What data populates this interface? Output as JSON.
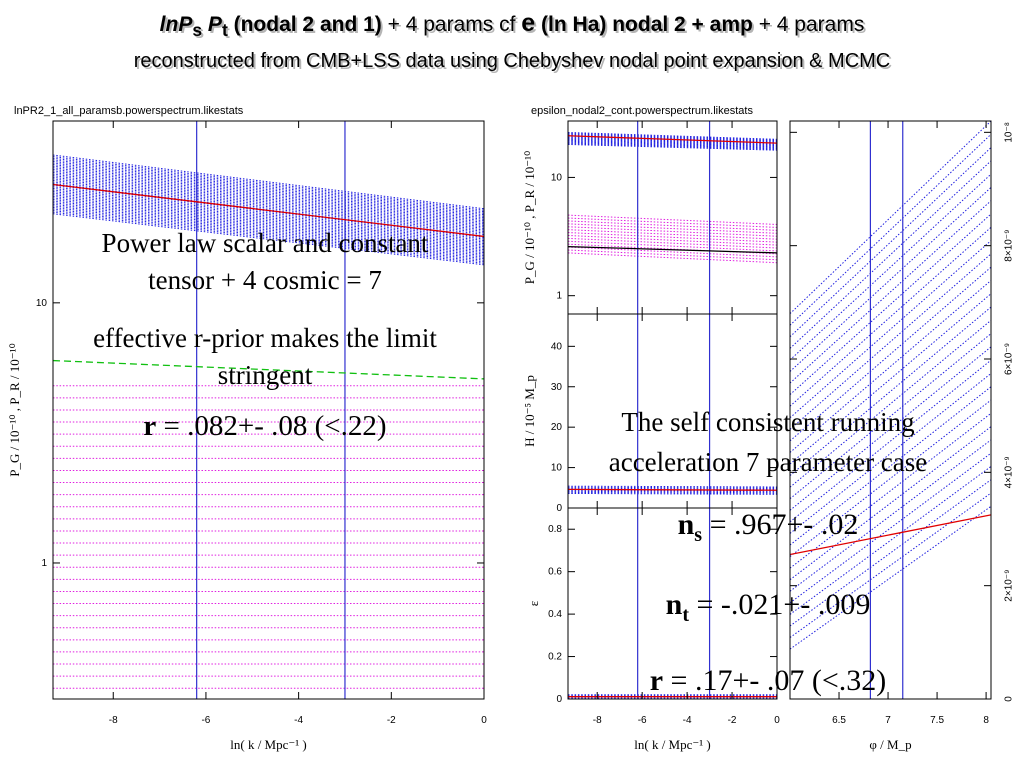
{
  "header": {
    "t_lnp": "lnP",
    "t_s": "s",
    "t_p": "P",
    "t_t": "t",
    "t_nodal": "(nodal 2 and 1)",
    "t_plus4a": "+ 4 params cf",
    "t_eps": "e",
    "t_lnha": "(ln Ha) nodal 2 + amp",
    "t_plus4b": "+ 4 params",
    "line2": "reconstructed from CMB+LSS data using Chebyshev nodal point expansion & MCMC"
  },
  "figures": {
    "left_file": "lnPR2_1_all_paramsb.powerspectrum.likestats",
    "right_file": "epsilon_nodal2_cont.powerspectrum.likestats"
  },
  "annotations": {
    "left_l1": "Power law scalar and constant",
    "left_l2": "tensor + 4 cosmic = 7",
    "left_l3": "effective r-prior makes the limit",
    "left_l4": "stringent",
    "left_r_sym": "r",
    "left_r_val": " = .082+- .08 (<.22)",
    "right_l1": "The self consistent running",
    "right_l2": "acceleration 7 parameter case",
    "ns_sym": "n",
    "ns_sub": "s",
    "ns_val": " = .967+- .02",
    "nt_sym": "n",
    "nt_sub": "t",
    "nt_val": " = -.021+- .009",
    "r_sym": "r",
    "r_val": " = .17+- .07 (<.32)"
  },
  "colors": {
    "blue": "#2020e0",
    "magenta": "#e020e0",
    "red": "#e00000",
    "green": "#10c010",
    "axis": "#000000",
    "vline": "#3030d0"
  },
  "chart_data": [
    {
      "id": "left",
      "type": "line",
      "yscale": "log",
      "xlim": [
        -9.3,
        0
      ],
      "ylim": [
        0.3,
        50
      ],
      "xticks": [
        -8,
        -6,
        -4,
        -2,
        0
      ],
      "yticks": [
        1,
        10
      ],
      "ytick_labels": [
        "1",
        "10"
      ],
      "xlabel": "ln( k / Mpc⁻¹ )",
      "ylabel": "P_G / 10⁻¹⁰ , P_R / 10⁻¹⁰",
      "vlines": [
        -6.2,
        -3.0
      ],
      "bands": [
        {
          "color": "blue",
          "style": "dotted",
          "n": 38,
          "y_left": [
            22,
            37
          ],
          "y_right": [
            14,
            23
          ]
        },
        {
          "color": "magenta",
          "style": "dotted",
          "n": 26,
          "y_left": [
            0.33,
            4.8
          ],
          "y_right": [
            0.33,
            4.8
          ]
        }
      ],
      "lines": [
        {
          "color": "red",
          "style": "solid",
          "x": [
            -9.3,
            0
          ],
          "y": [
            28.5,
            18
          ]
        },
        {
          "color": "green",
          "style": "dashed",
          "x": [
            -9.3,
            0
          ],
          "y": [
            6.0,
            5.1
          ]
        }
      ]
    },
    {
      "id": "right_top",
      "type": "line",
      "yscale": "log",
      "xlim": [
        -9.3,
        0
      ],
      "ylim": [
        0.7,
        30
      ],
      "xticks": [
        -8,
        -6,
        -4,
        -2,
        0
      ],
      "yticks": [
        1,
        10
      ],
      "ytick_labels": [
        "1",
        "10"
      ],
      "ylabel": "P_G / 10⁻¹⁰ , P_R / 10⁻¹⁰",
      "vlines": [
        -6.2,
        -3.0
      ],
      "bands": [
        {
          "color": "blue",
          "style": "dotted",
          "n": 14,
          "y_left": [
            19,
            24
          ],
          "y_right": [
            17,
            21
          ]
        },
        {
          "color": "magenta",
          "style": "dotted",
          "n": 14,
          "y_left": [
            2.3,
            4.8
          ],
          "y_right": [
            1.9,
            4.0
          ]
        }
      ],
      "lines": [
        {
          "color": "red",
          "style": "solid",
          "x": [
            -9.3,
            0
          ],
          "y": [
            22.5,
            19.5
          ]
        },
        {
          "color": "black",
          "style": "solid",
          "x": [
            -9.3,
            0
          ],
          "y": [
            2.6,
            2.3
          ]
        }
      ]
    },
    {
      "id": "right_mid",
      "type": "line",
      "xlim": [
        -9.3,
        0
      ],
      "ylim": [
        0,
        48
      ],
      "xticks": [
        -8,
        -6,
        -4,
        -2,
        0
      ],
      "yticks": [
        0,
        10,
        20,
        30,
        40
      ],
      "ytick_labels": [
        "0",
        "10",
        "20",
        "30",
        "40"
      ],
      "ylabel": "H / 10⁻⁵ M_p",
      "vlines": [
        -6.2,
        -3.0
      ],
      "bands": [
        {
          "color": "blue",
          "style": "dotted",
          "n": 8,
          "y_left": [
            3.6,
            5.4
          ],
          "y_right": [
            3.4,
            5.2
          ]
        }
      ],
      "lines": [
        {
          "color": "red",
          "style": "solid",
          "x": [
            -9.3,
            0
          ],
          "y": [
            4.6,
            4.4
          ]
        }
      ]
    },
    {
      "id": "right_bot",
      "type": "line",
      "xlim": [
        -9.3,
        0
      ],
      "ylim": [
        0,
        0.9
      ],
      "xticks": [
        -8,
        -6,
        -4,
        -2,
        0
      ],
      "xtick_labels": [
        "-8",
        "-6",
        "-4",
        "-2",
        "0"
      ],
      "yticks": [
        0,
        0.2,
        0.4,
        0.6,
        0.8
      ],
      "ytick_labels": [
        "0",
        "0.2",
        "0.4",
        "0.6",
        "0.8"
      ],
      "xlabel": "ln( k / Mpc⁻¹ )",
      "ylabel": "ε",
      "vlines": [
        -6.2,
        -3.0
      ],
      "bands": [
        {
          "color": "blue",
          "style": "dotted",
          "n": 5,
          "y_left": [
            0.004,
            0.02
          ],
          "y_right": [
            0.004,
            0.02
          ]
        }
      ],
      "lines": [
        {
          "color": "red",
          "style": "solid",
          "x": [
            -9.3,
            0
          ],
          "y": [
            0.011,
            0.011
          ]
        }
      ]
    },
    {
      "id": "right_side",
      "type": "line",
      "xlim": [
        6.0,
        8.05
      ],
      "ylim": [
        0,
        1.02e-08
      ],
      "xticks": [
        6.5,
        7,
        7.5,
        8
      ],
      "xtick_labels": [
        "6.5",
        "7",
        "7.5",
        "8"
      ],
      "yticks": [
        0,
        2e-09,
        4e-09,
        6e-09,
        8e-09,
        1e-08
      ],
      "ytick_labels": [
        "0",
        "2×10⁻⁹",
        "4×10⁻⁹",
        "6×10⁻⁹",
        "8×10⁻⁹",
        "10⁻⁸"
      ],
      "xlabel": "φ / M_p",
      "vlines": [
        6.82,
        7.15
      ],
      "bands": [
        {
          "color": "blue",
          "style": "dotted",
          "n": 30,
          "y_left": [
            8.8e-10,
            6.8e-09
          ],
          "y_right": [
            3.4e-09,
            1.02e-08
          ]
        }
      ],
      "lines": [
        {
          "color": "red",
          "style": "solid",
          "x": [
            6.0,
            8.05
          ],
          "y": [
            2.55e-09,
            3.25e-09
          ]
        }
      ]
    }
  ]
}
